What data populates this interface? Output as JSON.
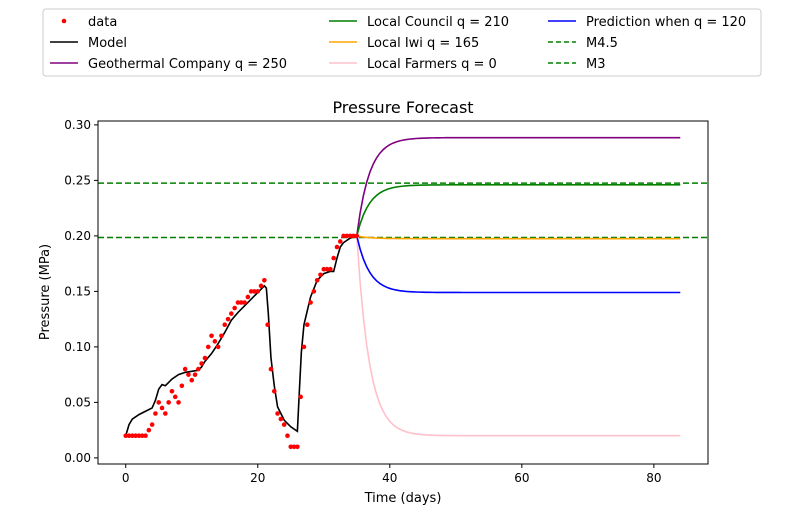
{
  "chart_data": {
    "type": "line",
    "title": "Pressure Forecast",
    "xlabel": "Time (days)",
    "ylabel": "Pressure (MPa)",
    "xlim": [
      -4.2,
      88.2
    ],
    "ylim": [
      -0.0055,
      0.3035
    ],
    "xticks": [
      0,
      20,
      40,
      60,
      80
    ],
    "xtick_labels": [
      "0",
      "20",
      "40",
      "60",
      "80"
    ],
    "yticks": [
      0.0,
      0.05,
      0.1,
      0.15,
      0.2,
      0.25,
      0.3
    ],
    "ytick_labels": [
      "0.00",
      "0.05",
      "0.10",
      "0.15",
      "0.20",
      "0.25",
      "0.30"
    ],
    "grid": false,
    "legend_position": "top (above plot, 3 columns)",
    "data": {
      "name": "data",
      "color": "#ff0000",
      "points": [
        [
          0,
          0.02
        ],
        [
          0.5,
          0.02
        ],
        [
          1,
          0.02
        ],
        [
          1.5,
          0.02
        ],
        [
          2,
          0.02
        ],
        [
          2.5,
          0.02
        ],
        [
          3,
          0.02
        ],
        [
          3.5,
          0.025
        ],
        [
          4,
          0.03
        ],
        [
          4.5,
          0.04
        ],
        [
          5,
          0.05
        ],
        [
          5.5,
          0.045
        ],
        [
          6,
          0.04
        ],
        [
          6.5,
          0.05
        ],
        [
          7,
          0.06
        ],
        [
          7.5,
          0.055
        ],
        [
          8,
          0.05
        ],
        [
          8.5,
          0.065
        ],
        [
          9,
          0.08
        ],
        [
          9.5,
          0.075
        ],
        [
          10,
          0.07
        ],
        [
          10.5,
          0.075
        ],
        [
          11,
          0.08
        ],
        [
          11.5,
          0.085
        ],
        [
          12,
          0.09
        ],
        [
          12.5,
          0.1
        ],
        [
          13,
          0.11
        ],
        [
          13.5,
          0.105
        ],
        [
          14,
          0.1
        ],
        [
          14.5,
          0.11
        ],
        [
          15,
          0.12
        ],
        [
          15.5,
          0.125
        ],
        [
          16,
          0.13
        ],
        [
          16.5,
          0.135
        ],
        [
          17,
          0.14
        ],
        [
          17.5,
          0.14
        ],
        [
          18,
          0.14
        ],
        [
          18.5,
          0.145
        ],
        [
          19,
          0.15
        ],
        [
          19.5,
          0.15
        ],
        [
          20,
          0.15
        ],
        [
          20.5,
          0.155
        ],
        [
          21,
          0.16
        ],
        [
          21.5,
          0.12
        ],
        [
          22,
          0.08
        ],
        [
          22.5,
          0.06
        ],
        [
          23,
          0.04
        ],
        [
          23.5,
          0.035
        ],
        [
          24,
          0.03
        ],
        [
          24.5,
          0.02
        ],
        [
          25,
          0.01
        ],
        [
          25.5,
          0.01
        ],
        [
          26,
          0.01
        ],
        [
          26.5,
          0.055
        ],
        [
          27,
          0.1
        ],
        [
          27.5,
          0.12
        ],
        [
          28,
          0.14
        ],
        [
          28.5,
          0.15
        ],
        [
          29,
          0.16
        ],
        [
          29.5,
          0.165
        ],
        [
          30,
          0.17
        ],
        [
          30.5,
          0.17
        ],
        [
          31,
          0.17
        ],
        [
          31.5,
          0.18
        ],
        [
          32,
          0.19
        ],
        [
          32.5,
          0.195
        ],
        [
          33,
          0.2
        ],
        [
          33.5,
          0.2
        ],
        [
          34,
          0.2
        ],
        [
          34.5,
          0.2
        ],
        [
          35,
          0.2
        ]
      ]
    },
    "model": {
      "name": "Model",
      "color": "#000000",
      "points": [
        [
          0,
          0.02
        ],
        [
          0.5,
          0.03
        ],
        [
          1,
          0.035
        ],
        [
          2,
          0.039
        ],
        [
          3,
          0.042
        ],
        [
          4,
          0.045
        ],
        [
          4.5,
          0.052
        ],
        [
          5,
          0.062
        ],
        [
          5.5,
          0.066
        ],
        [
          6,
          0.065
        ],
        [
          6.5,
          0.068
        ],
        [
          7,
          0.071
        ],
        [
          8,
          0.075
        ],
        [
          9,
          0.077
        ],
        [
          10,
          0.078
        ],
        [
          11,
          0.079
        ],
        [
          11.5,
          0.082
        ],
        [
          12,
          0.087
        ],
        [
          13,
          0.094
        ],
        [
          14,
          0.103
        ],
        [
          15,
          0.113
        ],
        [
          16,
          0.124
        ],
        [
          17,
          0.131
        ],
        [
          18,
          0.137
        ],
        [
          19,
          0.143
        ],
        [
          20,
          0.149
        ],
        [
          21,
          0.155
        ],
        [
          21.3,
          0.153
        ],
        [
          21.6,
          0.13
        ],
        [
          22,
          0.09
        ],
        [
          22.5,
          0.065
        ],
        [
          23,
          0.046
        ],
        [
          24,
          0.034
        ],
        [
          25,
          0.028
        ],
        [
          26,
          0.024
        ],
        [
          26.3,
          0.06
        ],
        [
          26.6,
          0.095
        ],
        [
          27,
          0.12
        ],
        [
          28,
          0.145
        ],
        [
          29,
          0.16
        ],
        [
          30,
          0.166
        ],
        [
          31,
          0.168
        ],
        [
          31.5,
          0.168
        ],
        [
          32,
          0.18
        ],
        [
          32.5,
          0.19
        ],
        [
          33,
          0.194
        ],
        [
          34,
          0.198
        ],
        [
          35,
          0.2
        ]
      ]
    },
    "series": [
      {
        "name": "Geothermal Company q = 250",
        "color": "#800080",
        "start": 0.2,
        "end": 0.2885
      },
      {
        "name": "Local Council q = 210",
        "color": "#008000",
        "start": 0.2,
        "end": 0.246
      },
      {
        "name": "Local Iwi q = 165",
        "color": "#ffa500",
        "start": 0.2,
        "end": 0.1975
      },
      {
        "name": "Local Farmers q = 0",
        "color": "#ffc0cb",
        "start": 0.2,
        "end": 0.02
      },
      {
        "name": "Prediction when q = 120",
        "color": "#0000ff",
        "start": 0.2,
        "end": 0.149
      }
    ],
    "forecast_x": [
      35,
      84
    ],
    "hlines": [
      {
        "name": "M4.5",
        "color": "#008000",
        "y": 0.2475
      },
      {
        "name": "M3",
        "color": "#008000",
        "y": 0.1985
      }
    ],
    "legend": [
      {
        "label": "data",
        "kind": "marker",
        "color": "#ff0000"
      },
      {
        "label": "Model",
        "kind": "line",
        "color": "#000000"
      },
      {
        "label": "Geothermal Company q = 250",
        "kind": "line",
        "color": "#800080"
      },
      {
        "label": "Local Council q = 210",
        "kind": "line",
        "color": "#008000"
      },
      {
        "label": "Local Iwi q = 165",
        "kind": "line",
        "color": "#ffa500"
      },
      {
        "label": "Local Farmers q = 0",
        "kind": "line",
        "color": "#ffc0cb"
      },
      {
        "label": "Prediction when q = 120",
        "kind": "line",
        "color": "#0000ff"
      },
      {
        "label": "M4.5",
        "kind": "dashed",
        "color": "#008000"
      },
      {
        "label": "M3",
        "kind": "dashed",
        "color": "#008000"
      }
    ]
  }
}
